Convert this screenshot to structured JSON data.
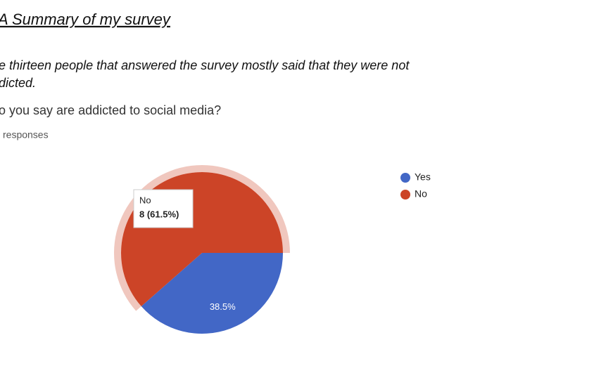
{
  "title": "A Summary of my survey",
  "summary": [
    "e thirteen people that answered the survey mostly said that they were not",
    "dicted."
  ],
  "chart_data": {
    "type": "pie",
    "title": "o you say are addicted to social media?",
    "subtitle": "responses",
    "categories": [
      "Yes",
      "No"
    ],
    "values": [
      38.5,
      61.5
    ],
    "value_labels": [
      "38.5%",
      null
    ],
    "colors": [
      "#4267c6",
      "#cc4427"
    ],
    "legend": "right",
    "tooltip": {
      "title": "No",
      "text": "8 (61.5%)"
    }
  }
}
